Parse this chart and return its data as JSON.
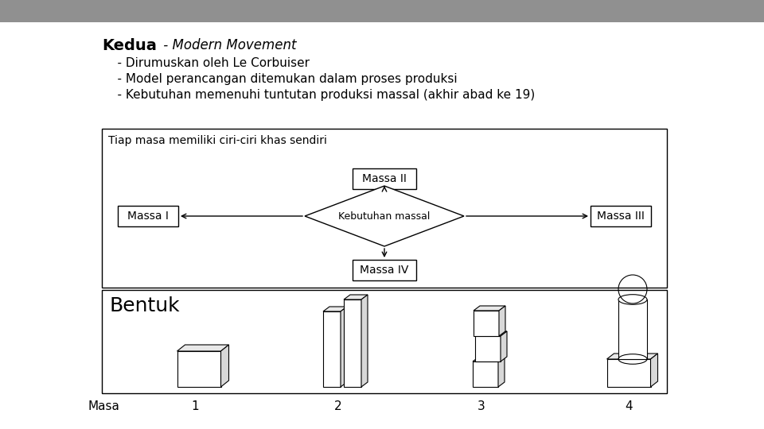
{
  "bg_color": "#a0a0a0",
  "header_color": "#909090",
  "slide_bg": "#ffffff",
  "title": "Kedua",
  "line0_italic": " - Modern Movement",
  "lines": [
    "    - Dirumuskan oleh Le Corbuiser",
    "    - Model perancangan ditemukan dalam proses produksi",
    "    - Kebutuhan memenuhi tuntutan produksi massal (akhir abad ke 19)"
  ],
  "flowchart_label": "Tiap masa memiliki ciri-ciri khas sendiri",
  "bentuk_label": "Bentuk",
  "masa_labels": [
    "Masa",
    "1",
    "2",
    "3",
    "4"
  ],
  "masa_x": [
    130,
    245,
    425,
    605,
    790
  ],
  "gray_face": "#d8d8d8",
  "light_gray": "#e8e8e8"
}
